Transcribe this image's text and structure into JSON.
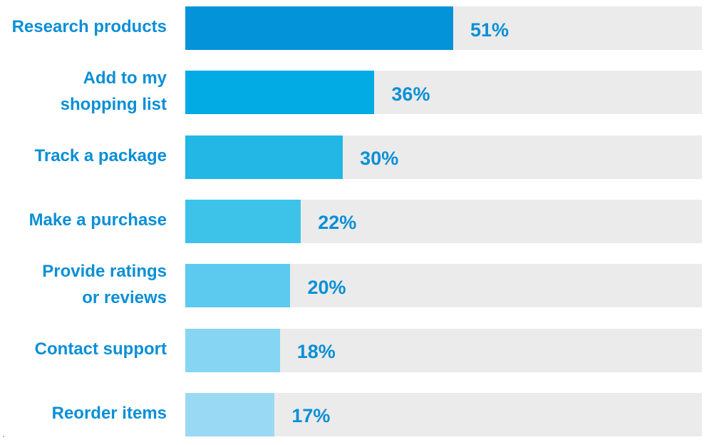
{
  "chart_data": {
    "type": "bar",
    "orientation": "horizontal",
    "title": "",
    "xlabel": "",
    "ylabel": "",
    "xlim": [
      0,
      100
    ],
    "grid": false,
    "legend": "none",
    "categories": [
      "Research products",
      "Add to my\nshopping list",
      "Track a package",
      "Make a purchase",
      "Provide ratings\nor reviews",
      "Contact support",
      "Reorder items"
    ],
    "values": [
      51,
      36,
      30,
      22,
      20,
      18,
      17
    ],
    "value_labels": [
      "51%",
      "36%",
      "30%",
      "22%",
      "20%",
      "18%",
      "17%"
    ],
    "bar_colors": [
      "#0393d8",
      "#03abe4",
      "#22b7e4",
      "#3dc2ea",
      "#5ccaee",
      "#86d5f3",
      "#9ad9f4"
    ],
    "track_color": "#ebebeb",
    "label_color": "#0a8fd6"
  }
}
